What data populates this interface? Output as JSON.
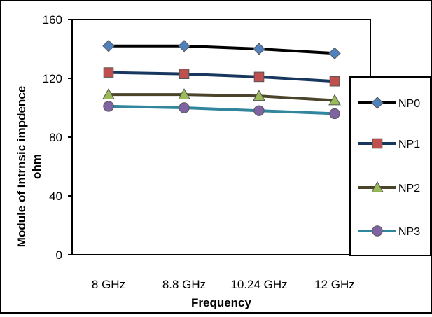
{
  "chart_data": {
    "type": "line",
    "title": "",
    "xlabel": "Frequency",
    "ylabel_line1": "Module of Intrnsic impdence",
    "ylabel_line2": "ohm",
    "categories": [
      "8 GHz",
      "8.8 GHz",
      "10.24 GHz",
      "12 GHz"
    ],
    "ylim": [
      0,
      160
    ],
    "yticks": [
      0,
      40,
      80,
      120,
      160
    ],
    "grid": false,
    "legend_position": "right",
    "series": [
      {
        "name": "NP0",
        "values": [
          142,
          142,
          140,
          137
        ],
        "color": "#000000",
        "marker": "diamond",
        "marker_color": "#4f81bd"
      },
      {
        "name": "NP1",
        "values": [
          124,
          123,
          121,
          118
        ],
        "color": "#17375e",
        "marker": "square",
        "marker_color": "#c0504d"
      },
      {
        "name": "NP2",
        "values": [
          109,
          109,
          108,
          105
        ],
        "color": "#4a452a",
        "marker": "triangle",
        "marker_color": "#9bbb59"
      },
      {
        "name": "NP3",
        "values": [
          101,
          100,
          98,
          96
        ],
        "color": "#31859c",
        "marker": "circle",
        "marker_color": "#8064a2"
      }
    ]
  }
}
